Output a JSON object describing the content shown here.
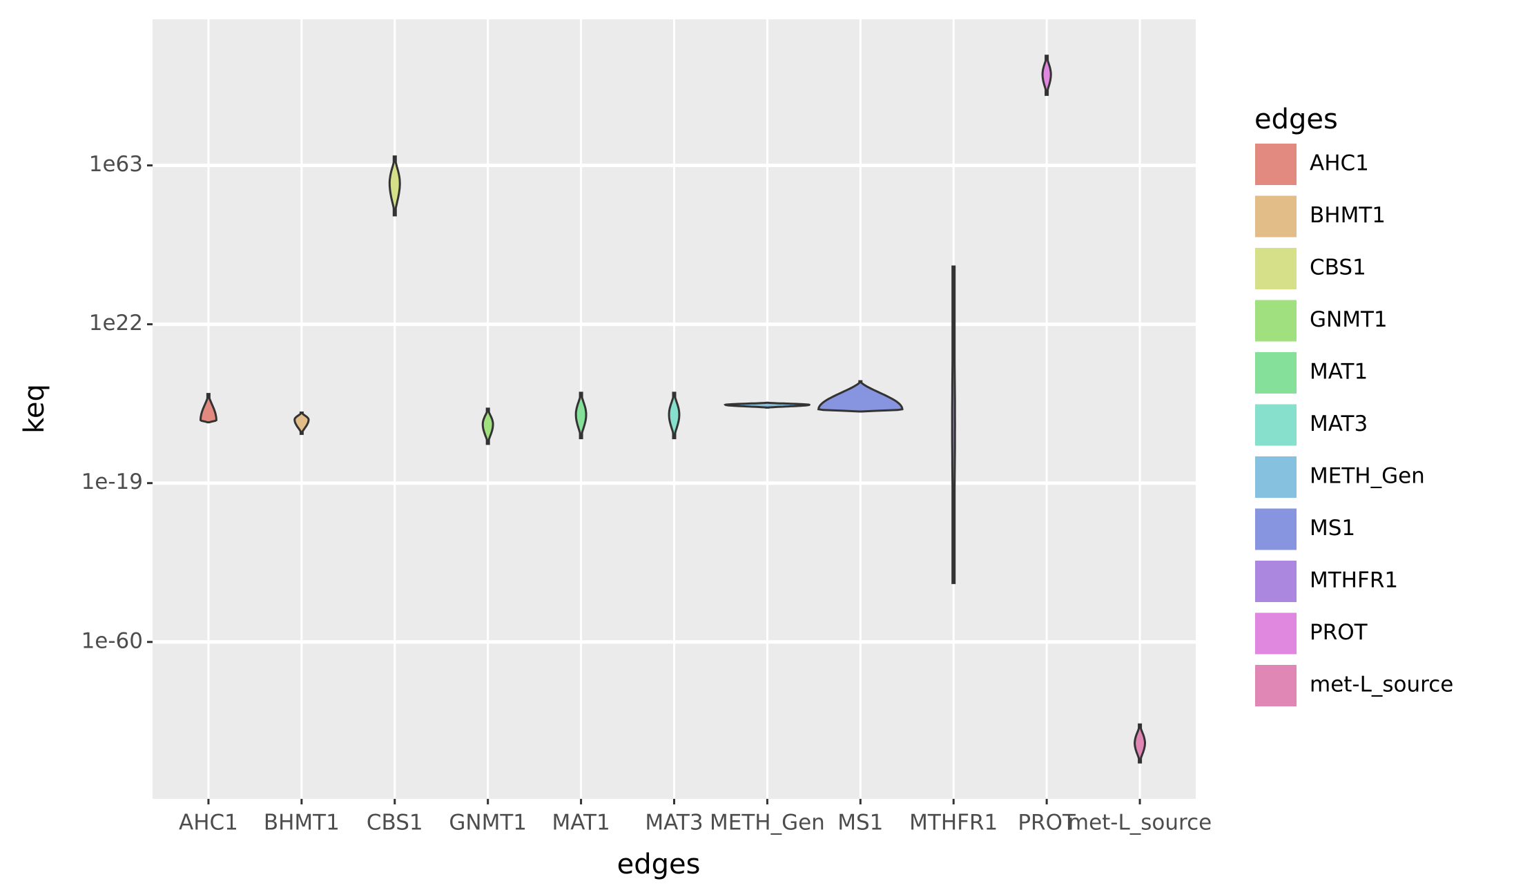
{
  "chart_data": {
    "type": "violin",
    "x_label": "edges",
    "y_label": "keq",
    "legend_title": "edges",
    "log_y": true,
    "grid": true,
    "legend_position": "right",
    "categories": [
      "AHC1",
      "BHMT1",
      "CBS1",
      "GNMT1",
      "MAT1",
      "MAT3",
      "METH_Gen",
      "MS1",
      "MTHFR1",
      "PROT",
      "met-L_source"
    ],
    "colors": [
      "#e38a80",
      "#e2bd87",
      "#d5e088",
      "#a0e07f",
      "#85e09a",
      "#86e0cc",
      "#86c1e0",
      "#8794e0",
      "#ac87e0",
      "#e087e0",
      "#e087b5"
    ],
    "min": [
      0.0005,
      5e-07,
      1.3e+50,
      1.3e-09,
      4e-08,
      4e-08,
      3,
      0.3,
      1.6e-45,
      1.6e+81,
      8e-92
    ],
    "peak": [
      0.0016,
      0.0025,
      2.5e+58,
      0.00016,
      0.05,
      0.05,
      16,
      1,
      0.0001,
      3e+86,
      8e-87
    ],
    "max": [
      10000.0,
      0.16,
      2e+65,
      1.6,
      20000.0,
      20000.0,
      56,
      20000000.0,
      8e+36,
      2e+91,
      5e-82
    ],
    "peak_width": [
      0.17,
      0.15,
      0.11,
      0.11,
      0.11,
      0.11,
      0.9,
      0.9,
      0.03,
      0.09,
      0.11
    ],
    "ylim": [
      3.2e-101,
      5e+100
    ],
    "yticks": [
      {
        "value": 1e-60,
        "label": "1e-60"
      },
      {
        "value": 1e-19,
        "label": "1e-19"
      },
      {
        "value": 1e+22,
        "label": "1e22"
      },
      {
        "value": 1e+63,
        "label": "1e63"
      }
    ]
  }
}
